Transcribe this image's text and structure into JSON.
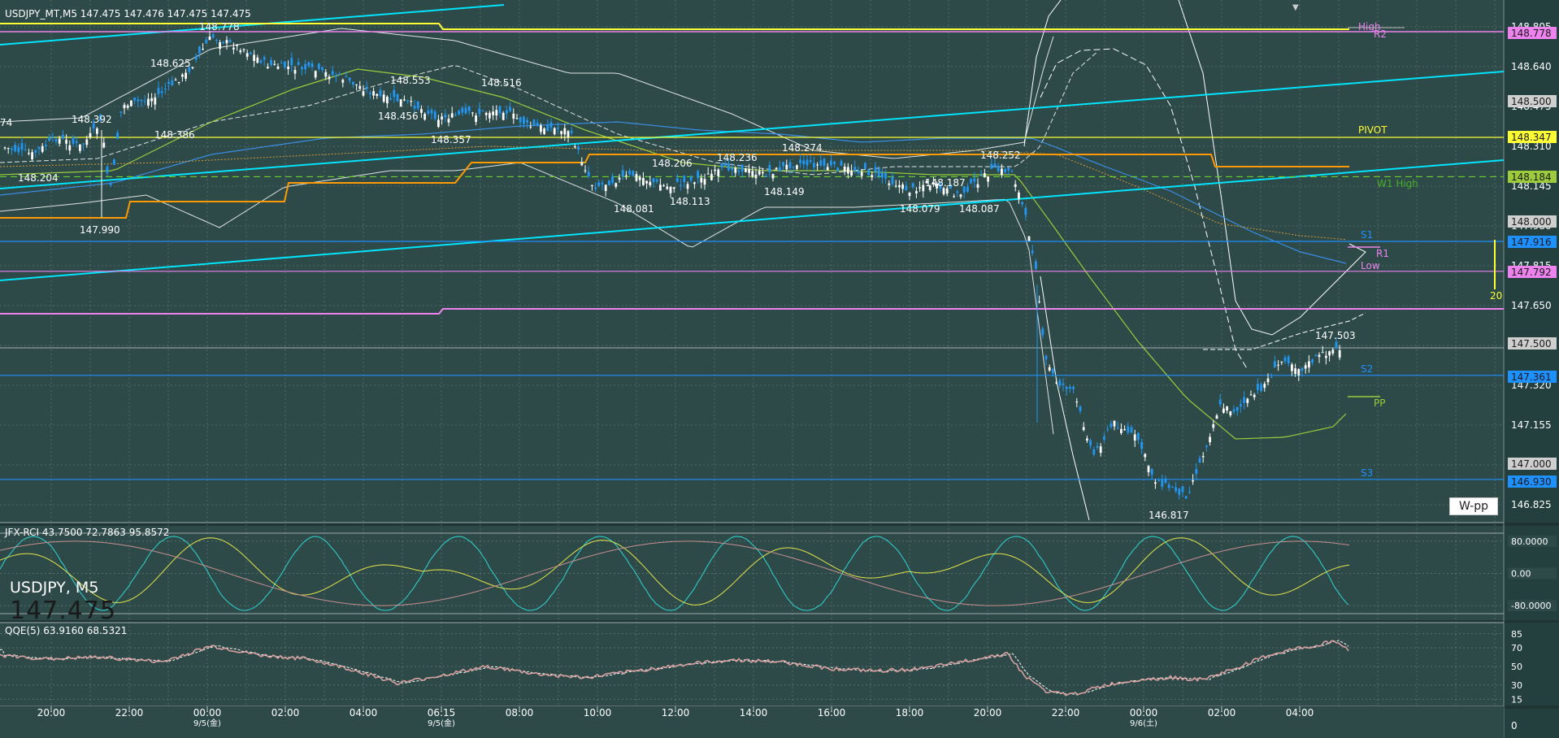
{
  "header": {
    "main_title": "USDJPY_MT,M5  147.475 147.476 147.475 147.475",
    "rci_title": "JFX-RCI 43.7500 72.7863 95.8572",
    "qqe_title": "QQE(5) 63.9160 68.5321"
  },
  "overlay": {
    "symbol": "USDJPY, M5",
    "price": "147.475"
  },
  "buttons": {
    "wpp": "W-pp"
  },
  "main_axis": [
    "148.805",
    "148.640",
    "148.475",
    "148.310",
    "148.145",
    "147.980",
    "147.815",
    "147.650",
    "147.485",
    "147.320",
    "147.155",
    "146.990",
    "146.825"
  ],
  "tag_labels": [
    {
      "text": "148.778",
      "color": "#ee82ee"
    },
    {
      "text": "148.500",
      "color": "#cfcfcf"
    },
    {
      "text": "148.347",
      "color": "#ffff33"
    },
    {
      "text": "148.184",
      "color": "#9ccc3c"
    },
    {
      "text": "148.000",
      "color": "#cfcfcf"
    },
    {
      "text": "147.916",
      "color": "#1e90ff"
    },
    {
      "text": "147.792",
      "color": "#ee82ee"
    },
    {
      "text": "147.500",
      "color": "#cfcfcf"
    },
    {
      "text": "147.361",
      "color": "#1e90ff"
    },
    {
      "text": "147.000",
      "color": "#cfcfcf"
    },
    {
      "text": "146.930",
      "color": "#1e90ff"
    }
  ],
  "pivot_labels": [
    {
      "text": "High",
      "color": "#ee82ee"
    },
    {
      "text": "R2",
      "color": "#ee82ee"
    },
    {
      "text": "PIVOT",
      "color": "#ffff33"
    },
    {
      "text": "W1 High",
      "color": "#4caf2a"
    },
    {
      "text": "S1",
      "color": "#1e90ff"
    },
    {
      "text": "R1",
      "color": "#ee82ee"
    },
    {
      "text": "Low",
      "color": "#ee82ee"
    },
    {
      "text": "S2",
      "color": "#1e90ff"
    },
    {
      "text": "PP",
      "color": "#9ccc3c"
    },
    {
      "text": "S3",
      "color": "#1e90ff"
    }
  ],
  "spread_label": "20",
  "price_annotations": [
    "74",
    "148.392",
    "148.204",
    "148.778",
    "148.625",
    "148.386",
    "147.990",
    "148.553",
    "148.456",
    "148.357",
    "148.516",
    "148.206",
    "148.081",
    "148.113",
    "148.236",
    "148.149",
    "148.274",
    "148.187",
    "148.087",
    "148.079",
    "148.252",
    "146.817",
    "147.503"
  ],
  "rci_axis": [
    "80.0000",
    "0.00",
    "-80.0000"
  ],
  "qqe_axis": [
    "85",
    "70",
    "50",
    "30",
    "15"
  ],
  "time_labels": [
    "20:00",
    "22:00",
    "00:00",
    "02:00",
    "04:00",
    "06:15",
    "08:00",
    "10:00",
    "12:00",
    "14:00",
    "16:00",
    "18:00",
    "20:00",
    "22:00",
    "00:00",
    "02:00",
    "04:00"
  ],
  "date_labels": [
    "9/5(金)",
    "9/5(金)",
    "9/6(土)"
  ],
  "bottom_axis": "0",
  "colors": {
    "background": "#2d4a48",
    "cyan_trend": "#00e5ff",
    "pivot": "#ffff33",
    "support": "#1e90ff",
    "resistance": "#ee82ee",
    "orange": "#ff9900",
    "candle_up": "#ffffff",
    "candle_down": "#2196f3"
  },
  "chart_data": [
    {
      "type": "candlestick",
      "title": "USDJPY_MT,M5",
      "ylim": [
        146.74,
        148.86
      ],
      "pivots": {
        "High": 148.778,
        "R2": 148.778,
        "PIVOT": 148.347,
        "W1 High": 148.184,
        "S1": 147.916,
        "R1": 147.916,
        "Low": 147.792,
        "S2": 147.361,
        "PP": 147.28,
        "S3": 146.93
      },
      "last": 147.475,
      "annotated_extremes": {
        "high": 148.778,
        "low": 146.817,
        "last_high": 147.503
      }
    },
    {
      "type": "line",
      "title": "JFX-RCI",
      "series": [
        {
          "name": "RCI short",
          "values": [
            43.75
          ]
        },
        {
          "name": "RCI mid",
          "values": [
            72.7863
          ]
        },
        {
          "name": "RCI long",
          "values": [
            95.8572
          ]
        }
      ],
      "ylim": [
        -100,
        100
      ]
    },
    {
      "type": "line",
      "title": "QQE(5)",
      "series": [
        {
          "name": "QQE",
          "values": [
            63.916
          ]
        },
        {
          "name": "signal",
          "values": [
            68.5321
          ]
        }
      ],
      "ylim": [
        10,
        90
      ]
    }
  ]
}
